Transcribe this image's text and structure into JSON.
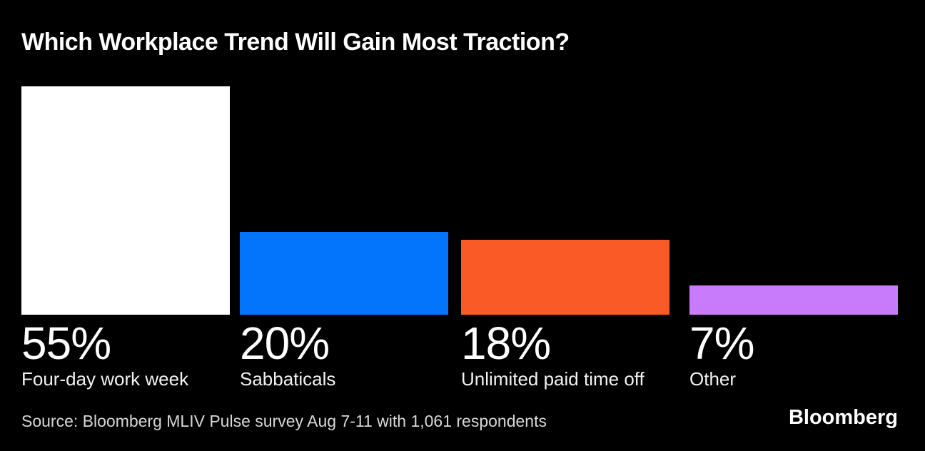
{
  "header": {
    "title": "Which Workplace Trend Will Gain Most Traction?"
  },
  "footer": {
    "source": "Source: Bloomberg MLIV Pulse survey Aug 7-11 with 1,061 respondents",
    "logo": "Bloomberg"
  },
  "colors": {
    "background": "#000000",
    "title_text": "#FFFFFF",
    "label_text": "#F2F2F2",
    "source_text": "#D8D8D8"
  },
  "chart_data": {
    "type": "bar",
    "title": "Which Workplace Trend Will Gain Most Traction?",
    "unit": "%",
    "categories": [
      "Four-day work week",
      "Sabbaticals",
      "Unlimited paid time off",
      "Other"
    ],
    "values": [
      55,
      20,
      18,
      7
    ],
    "ylim": [
      0,
      55
    ],
    "grid": false,
    "axes_hidden": true,
    "legend": "none",
    "value_labels_position": "below-bar",
    "items": [
      {
        "label": "Four-day work week",
        "value": 55,
        "value_label": "55%",
        "color": "#FFFFFF"
      },
      {
        "label": "Sabbaticals",
        "value": 20,
        "value_label": "20%",
        "color": "#0374FC"
      },
      {
        "label": "Unlimited paid time off",
        "value": 18,
        "value_label": "18%",
        "color": "#F95A26"
      },
      {
        "label": "Other",
        "value": 7,
        "value_label": "7%",
        "color": "#C87BFA"
      }
    ]
  }
}
